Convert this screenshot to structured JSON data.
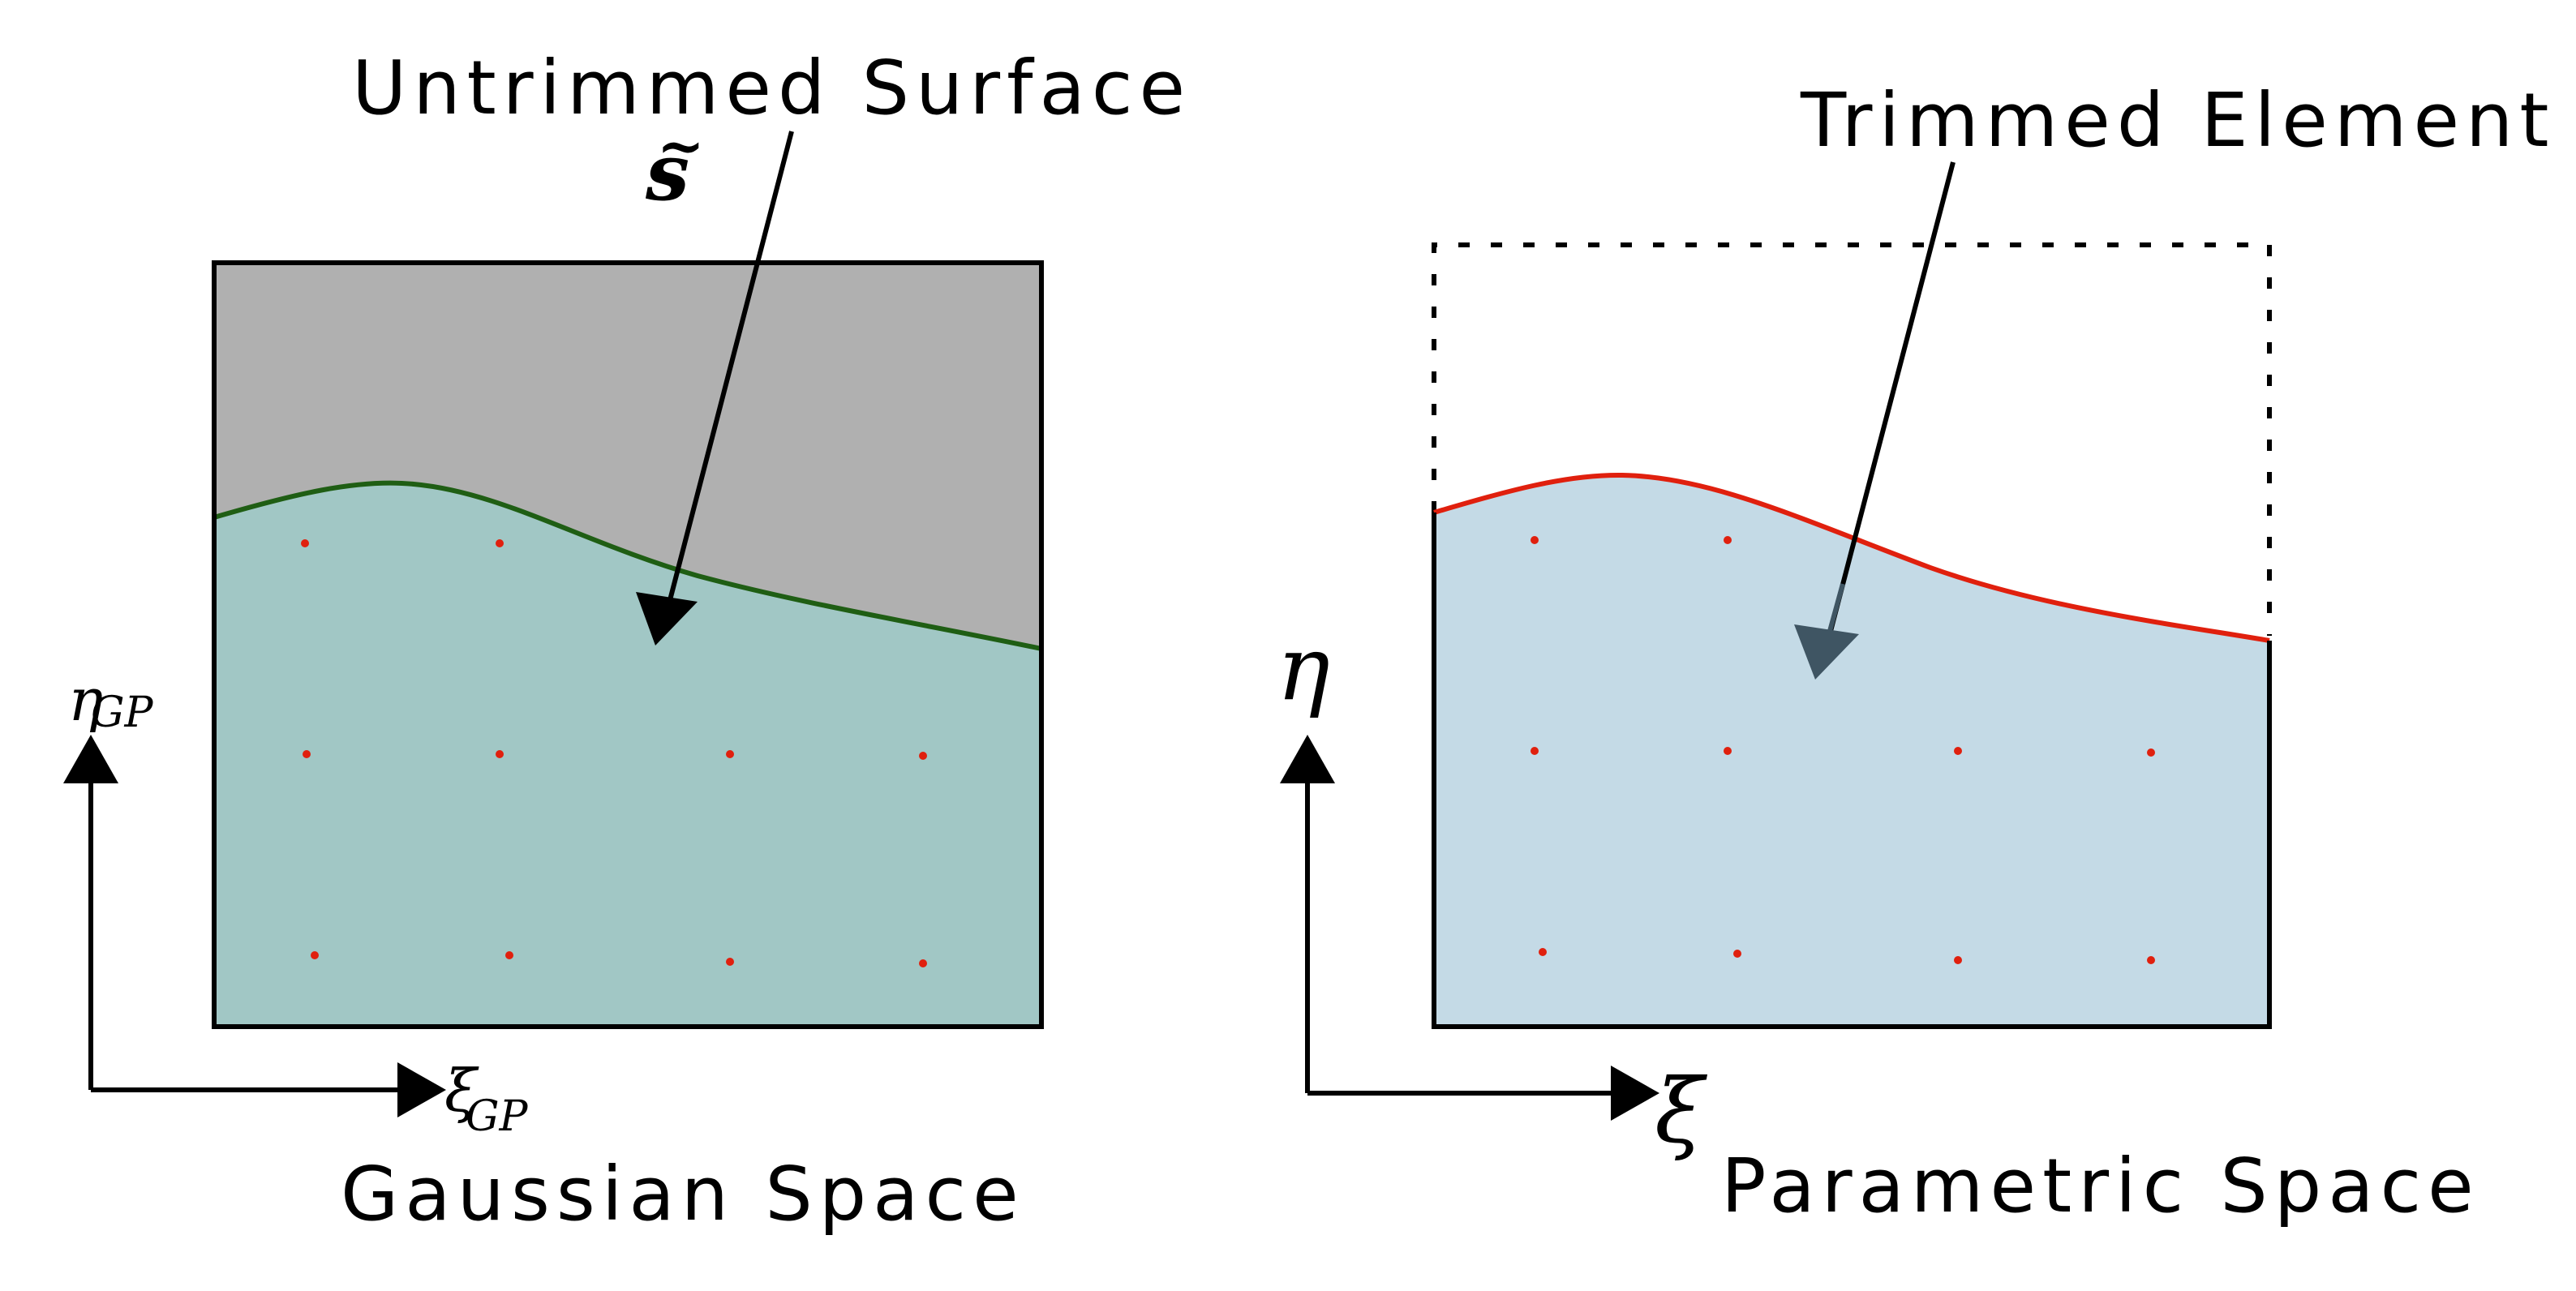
{
  "left_panel": {
    "callout": "Untrimmed Surface",
    "surface_symbol": "s",
    "surface_accent": "~",
    "caption": "Gaussian Space",
    "x_axis_symbol": "ξ",
    "x_axis_subscript": "GP",
    "y_axis_symbol": "η",
    "y_axis_subscript": "GP"
  },
  "right_panel": {
    "callout": "Trimmed Element",
    "caption": "Parametric Space",
    "x_axis_symbol": "ξ",
    "y_axis_symbol": "η"
  },
  "colors": {
    "untrimmed_region": "#b0b0b0",
    "gaussian_region": "#a1c7c5",
    "trim_curve_left": "#1f5e14",
    "parametric_region": "#c4dae6",
    "trim_curve_right": "#e0200e",
    "gauss_point": "#e0200e",
    "arrow_fill": "#000000",
    "arrow_fill_right": "#3f5563"
  },
  "left_gauss_points_rows": 3,
  "right_gauss_points_rows": 3
}
